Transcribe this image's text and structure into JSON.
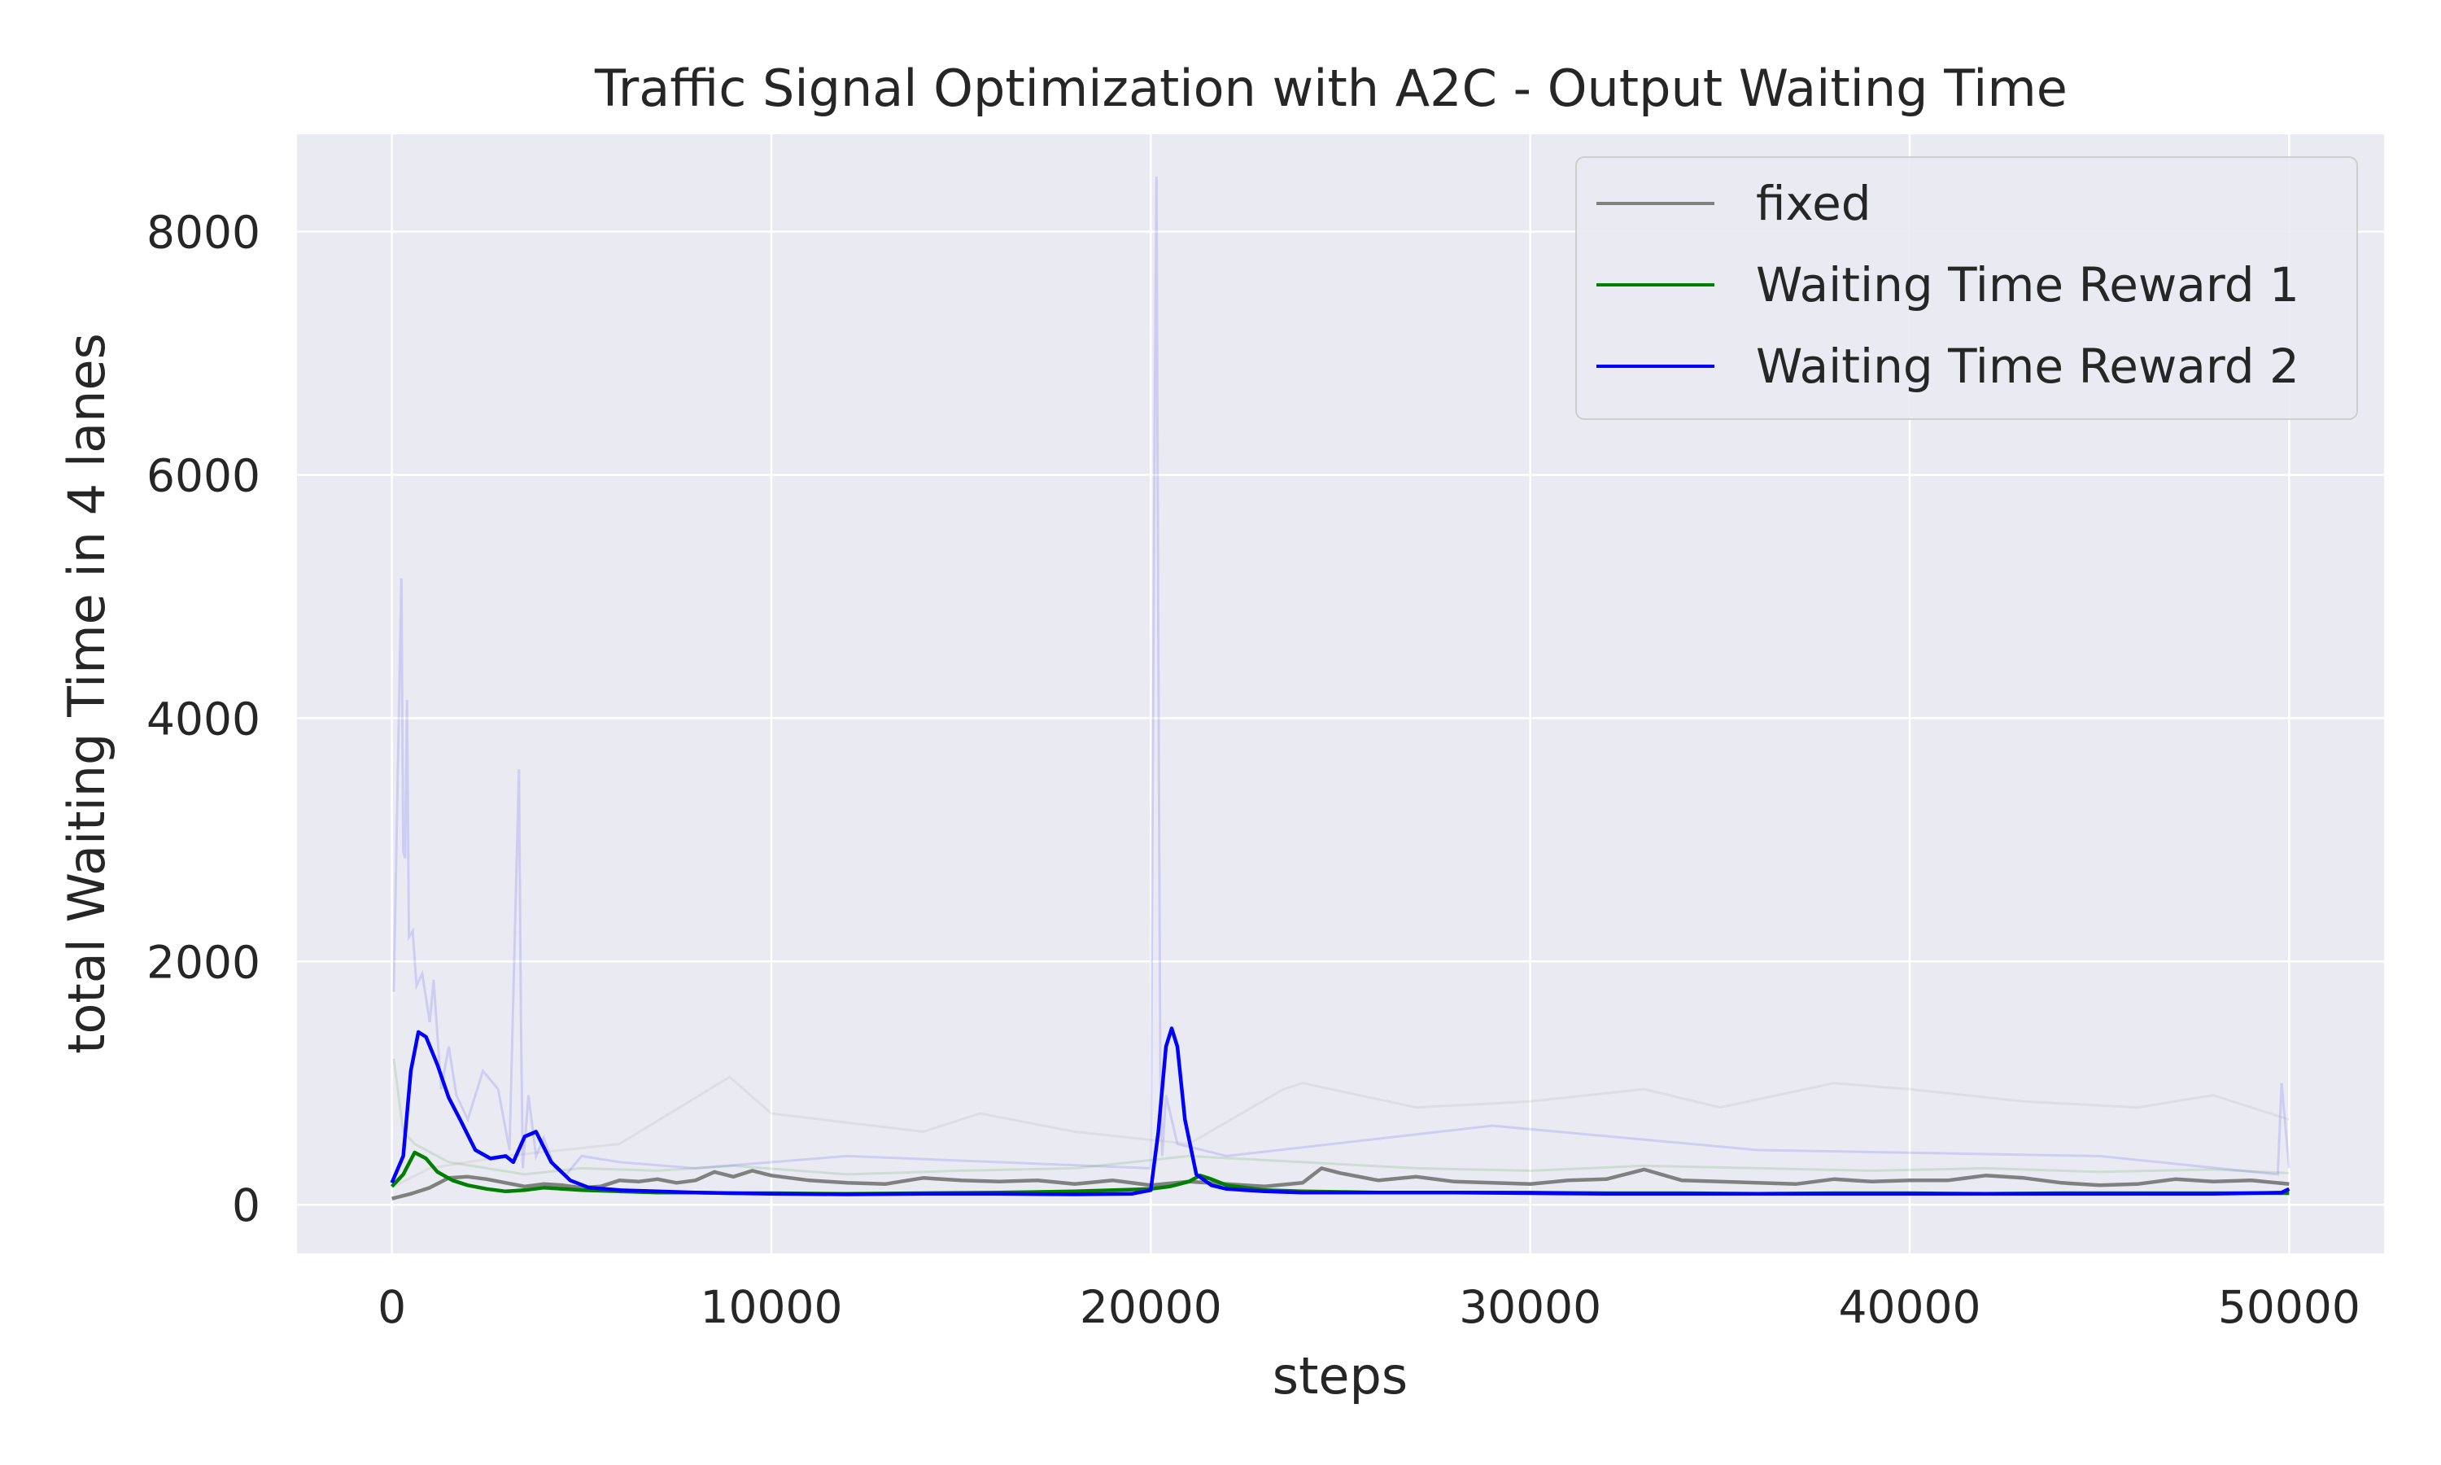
{
  "chart_data": {
    "type": "line",
    "title": "Traffic Signal Optimization with A2C - Output Waiting Time",
    "xlabel": "steps",
    "ylabel": "total Waiting Time in 4 lanes",
    "xlim": [
      -2500,
      52500
    ],
    "ylim": [
      -400,
      8800
    ],
    "x_ticks": [
      0,
      10000,
      20000,
      30000,
      40000,
      50000
    ],
    "y_ticks": [
      0,
      2000,
      4000,
      6000,
      8000
    ],
    "grid": true,
    "legend_position": "top-right",
    "background_color": "#eaeaf2",
    "series": [
      {
        "name": "fixed",
        "color": "#808080",
        "x": [
          0,
          500,
          1000,
          1500,
          2000,
          2500,
          3000,
          3500,
          4000,
          4500,
          5000,
          5500,
          6000,
          6500,
          7000,
          7500,
          8000,
          8500,
          9000,
          9500,
          10000,
          11000,
          12000,
          13000,
          14000,
          15000,
          16000,
          17000,
          18000,
          19000,
          20000,
          21000,
          22000,
          23000,
          24000,
          24500,
          25000,
          26000,
          27000,
          28000,
          29000,
          30000,
          31000,
          32000,
          33000,
          34000,
          35000,
          36000,
          37000,
          38000,
          39000,
          40000,
          41000,
          42000,
          43000,
          44000,
          45000,
          46000,
          47000,
          48000,
          49000,
          50000
        ],
        "y": [
          50,
          90,
          140,
          220,
          230,
          210,
          180,
          150,
          170,
          160,
          140,
          150,
          200,
          190,
          210,
          180,
          200,
          270,
          230,
          280,
          240,
          200,
          180,
          170,
          220,
          200,
          190,
          200,
          170,
          200,
          160,
          190,
          170,
          150,
          180,
          300,
          260,
          200,
          230,
          190,
          180,
          170,
          200,
          210,
          290,
          200,
          190,
          180,
          170,
          210,
          190,
          200,
          200,
          240,
          220,
          180,
          160,
          170,
          210,
          190,
          200,
          170
        ]
      },
      {
        "name": "Waiting Time Reward 1",
        "color": "#008000",
        "x": [
          0,
          300,
          600,
          900,
          1200,
          1600,
          2000,
          2500,
          3000,
          3500,
          4000,
          5000,
          6000,
          7000,
          8000,
          9000,
          10000,
          12000,
          14000,
          16000,
          18000,
          20000,
          20500,
          21000,
          21300,
          21600,
          22000,
          23000,
          24000,
          25000,
          26000,
          28000,
          30000,
          32000,
          34000,
          36000,
          38000,
          40000,
          42000,
          44000,
          46000,
          48000,
          50000
        ],
        "y": [
          150,
          250,
          430,
          380,
          270,
          200,
          160,
          130,
          110,
          120,
          140,
          120,
          110,
          100,
          100,
          95,
          95,
          90,
          95,
          100,
          110,
          130,
          150,
          190,
          240,
          210,
          160,
          120,
          110,
          105,
          100,
          100,
          100,
          95,
          95,
          90,
          95,
          95,
          90,
          95,
          95,
          95,
          95
        ]
      },
      {
        "name": "Waiting Time Reward 2",
        "color": "#0000ff",
        "x": [
          0,
          300,
          500,
          700,
          900,
          1200,
          1500,
          1800,
          2200,
          2600,
          3000,
          3200,
          3500,
          3800,
          4200,
          4700,
          5200,
          6000,
          7000,
          8000,
          10000,
          12000,
          14000,
          16000,
          18000,
          19500,
          20000,
          20200,
          20400,
          20550,
          20700,
          20900,
          21200,
          21600,
          22000,
          23000,
          24000,
          26000,
          28000,
          30000,
          32000,
          34000,
          36000,
          38000,
          40000,
          42000,
          44000,
          46000,
          48000,
          49800,
          50000
        ],
        "y": [
          180,
          400,
          1100,
          1420,
          1380,
          1150,
          880,
          700,
          450,
          380,
          400,
          350,
          560,
          600,
          350,
          200,
          140,
          120,
          110,
          100,
          90,
          85,
          90,
          90,
          85,
          90,
          120,
          600,
          1300,
          1450,
          1300,
          700,
          250,
          160,
          130,
          110,
          100,
          100,
          100,
          95,
          90,
          90,
          90,
          90,
          90,
          90,
          90,
          90,
          90,
          100,
          130
        ]
      }
    ],
    "raw_traces": [
      {
        "color": "#0000ff",
        "x": [
          50,
          250,
          300,
          350,
          400,
          450,
          550,
          650,
          800,
          1000,
          1100,
          1300,
          1500,
          1700,
          2000,
          2400,
          2800,
          3100,
          3350,
          3400,
          3450,
          3600,
          3800,
          4000,
          4300,
          4600,
          5000,
          6000,
          8000,
          12000,
          16000,
          20000,
          20100,
          20150,
          20200,
          20250,
          20300,
          20400,
          20700,
          22000,
          29000,
          36000,
          45000,
          49700,
          49800,
          50000
        ],
        "y": [
          1750,
          5150,
          2900,
          2850,
          4150,
          2200,
          2250,
          1800,
          1900,
          1500,
          1850,
          950,
          1300,
          900,
          700,
          1100,
          950,
          450,
          3580,
          1550,
          300,
          900,
          400,
          550,
          300,
          250,
          400,
          350,
          300,
          400,
          350,
          300,
          6350,
          8450,
          4600,
          1100,
          400,
          900,
          500,
          400,
          650,
          450,
          400,
          250,
          1000,
          300
        ]
      },
      {
        "color": "#008000",
        "x": [
          50,
          300,
          600,
          900,
          1500,
          2500,
          3500,
          5000,
          7000,
          9000,
          12000,
          15000,
          18000,
          21000,
          24000,
          27000,
          30000,
          33000,
          36000,
          39000,
          42000,
          45000,
          48000,
          50000
        ],
        "y": [
          1200,
          600,
          500,
          450,
          350,
          300,
          250,
          300,
          280,
          320,
          250,
          280,
          300,
          400,
          350,
          300,
          280,
          320,
          300,
          280,
          300,
          270,
          290,
          260
        ]
      },
      {
        "color": "#808080",
        "x": [
          50,
          1000,
          3000,
          6000,
          8900,
          10000,
          14000,
          15500,
          18000,
          21000,
          23500,
          24000,
          27000,
          30000,
          33000,
          35000,
          38000,
          40000,
          43000,
          46000,
          48000,
          50000
        ],
        "y": [
          150,
          300,
          400,
          500,
          1050,
          750,
          600,
          750,
          600,
          500,
          950,
          1000,
          800,
          850,
          950,
          800,
          1000,
          950,
          850,
          800,
          900,
          700
        ]
      }
    ]
  }
}
